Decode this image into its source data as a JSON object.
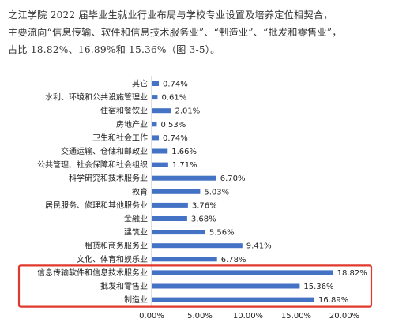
{
  "intro": {
    "line1": "之江学院 2022 届毕业生就业行业布局与学校专业设置及培养定位相契合，",
    "line2": "主要流向“信息传输、软件和信息技术服务业”、“制造业”、“批发和零售业”，",
    "line3": "占比 18.82%、16.89%和 15.36%（图 3-5）。"
  },
  "chart_data": {
    "type": "bar",
    "orientation": "horizontal",
    "categories": [
      "其它",
      "水利、环境和公共设施管理业",
      "住宿和餐饮业",
      "房地产业",
      "卫生和社会工作",
      "交通运输、仓储和邮政业",
      "公共管理、社会保障和社会组织",
      "科学研究和技术服务业",
      "教育",
      "居民服务、修理和其他服务业",
      "金融业",
      "建筑业",
      "租赁和商务服务业",
      "文化、体育和娱乐业",
      "信息传输软件和信息技术服务业",
      "批发和零售业",
      "制造业"
    ],
    "values": [
      0.74,
      0.61,
      2.01,
      0.53,
      0.74,
      1.66,
      1.71,
      6.7,
      5.03,
      3.76,
      3.68,
      5.56,
      9.41,
      6.78,
      18.82,
      15.36,
      16.89
    ],
    "value_labels": [
      "0.74%",
      "0.61%",
      "2.01%",
      "0.53%",
      "0.74%",
      "1.66%",
      "1.71%",
      "6.70%",
      "5.03%",
      "3.76%",
      "3.68%",
      "5.56%",
      "9.41%",
      "6.78%",
      "18.82%",
      "15.36%",
      "16.89%"
    ],
    "xlim": [
      0,
      20
    ],
    "xticks": [
      "0.00%",
      "5.00%",
      "10.00%",
      "15.00%",
      "20.00%"
    ],
    "bar_color": "#4472c4",
    "highlight_color": "#e03a2f",
    "highlighted_categories": [
      "信息传输软件和信息技术服务业",
      "批发和零售业",
      "制造业"
    ],
    "grid": false
  }
}
